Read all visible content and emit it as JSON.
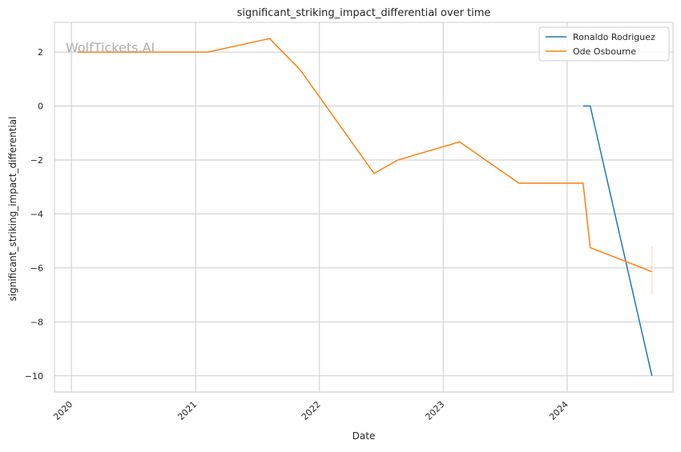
{
  "watermark": "WolfTickets.AI",
  "chart_data": {
    "type": "line",
    "title": "significant_striking_impact_differential over time",
    "xlabel": "Date",
    "ylabel": "significant_striking_impact_differential",
    "x_ticks": [
      "2020",
      "2021",
      "2022",
      "2023",
      "2024"
    ],
    "y_ticks": [
      2,
      0,
      -2,
      -4,
      -6,
      -8,
      -10
    ],
    "y_tick_labels": [
      "2",
      "0",
      "−2",
      "−4",
      "−6",
      "−8",
      "−10"
    ],
    "xlim": [
      "2019-11-12",
      "2024-11-08"
    ],
    "ylim": [
      -10.6,
      3.1
    ],
    "grid": true,
    "legend_position": "top-right",
    "series": [
      {
        "name": "Ronaldo Rodriguez",
        "color": "#1f77b4",
        "points": [
          [
            "2024-02-17",
            0.0
          ],
          [
            "2024-03-09",
            0.0
          ],
          [
            "2024-09-07",
            -10.0
          ]
        ]
      },
      {
        "name": "Ode Osbourne",
        "color": "#ff7f0e",
        "points": [
          [
            "2020-01-18",
            2.0
          ],
          [
            "2021-02-06",
            2.0
          ],
          [
            "2021-08-07",
            2.5
          ],
          [
            "2021-11-06",
            1.33
          ],
          [
            "2022-06-11",
            -2.5
          ],
          [
            "2022-08-20",
            -2.0
          ],
          [
            "2023-02-18",
            -1.33
          ],
          [
            "2023-08-12",
            -2.86
          ],
          [
            "2024-02-17",
            -2.86
          ],
          [
            "2024-03-09",
            -5.25
          ],
          [
            "2024-09-07",
            -6.14
          ]
        ],
        "error_bar": {
          "x": "2024-09-07",
          "low": -7.0,
          "high": -5.2
        }
      }
    ]
  }
}
